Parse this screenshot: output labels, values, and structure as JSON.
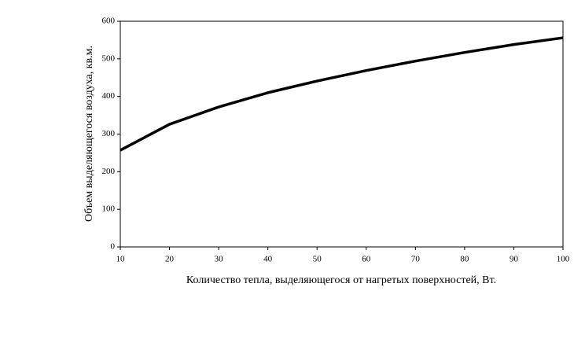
{
  "chart_data": {
    "type": "line",
    "x_label": "Количество тепла, выделяющегося от нагретых поверхностей, Вт.",
    "y_label": "Объем выделяющегося воздуха, кв.м.",
    "x": [
      10,
      20,
      30,
      40,
      50,
      60,
      70,
      80,
      90,
      100
    ],
    "series": [
      {
        "color": "#000000",
        "values": [
          257,
          326,
          372,
          410,
          441,
          469,
          494,
          517,
          538,
          556
        ]
      }
    ],
    "xlim": [
      10,
      100
    ],
    "xticks": [
      10,
      20,
      30,
      40,
      50,
      60,
      70,
      80,
      90,
      100
    ],
    "ylim": [
      0,
      600
    ],
    "yticks": [
      0,
      100,
      200,
      300,
      400,
      500,
      600
    ],
    "grid": false
  }
}
